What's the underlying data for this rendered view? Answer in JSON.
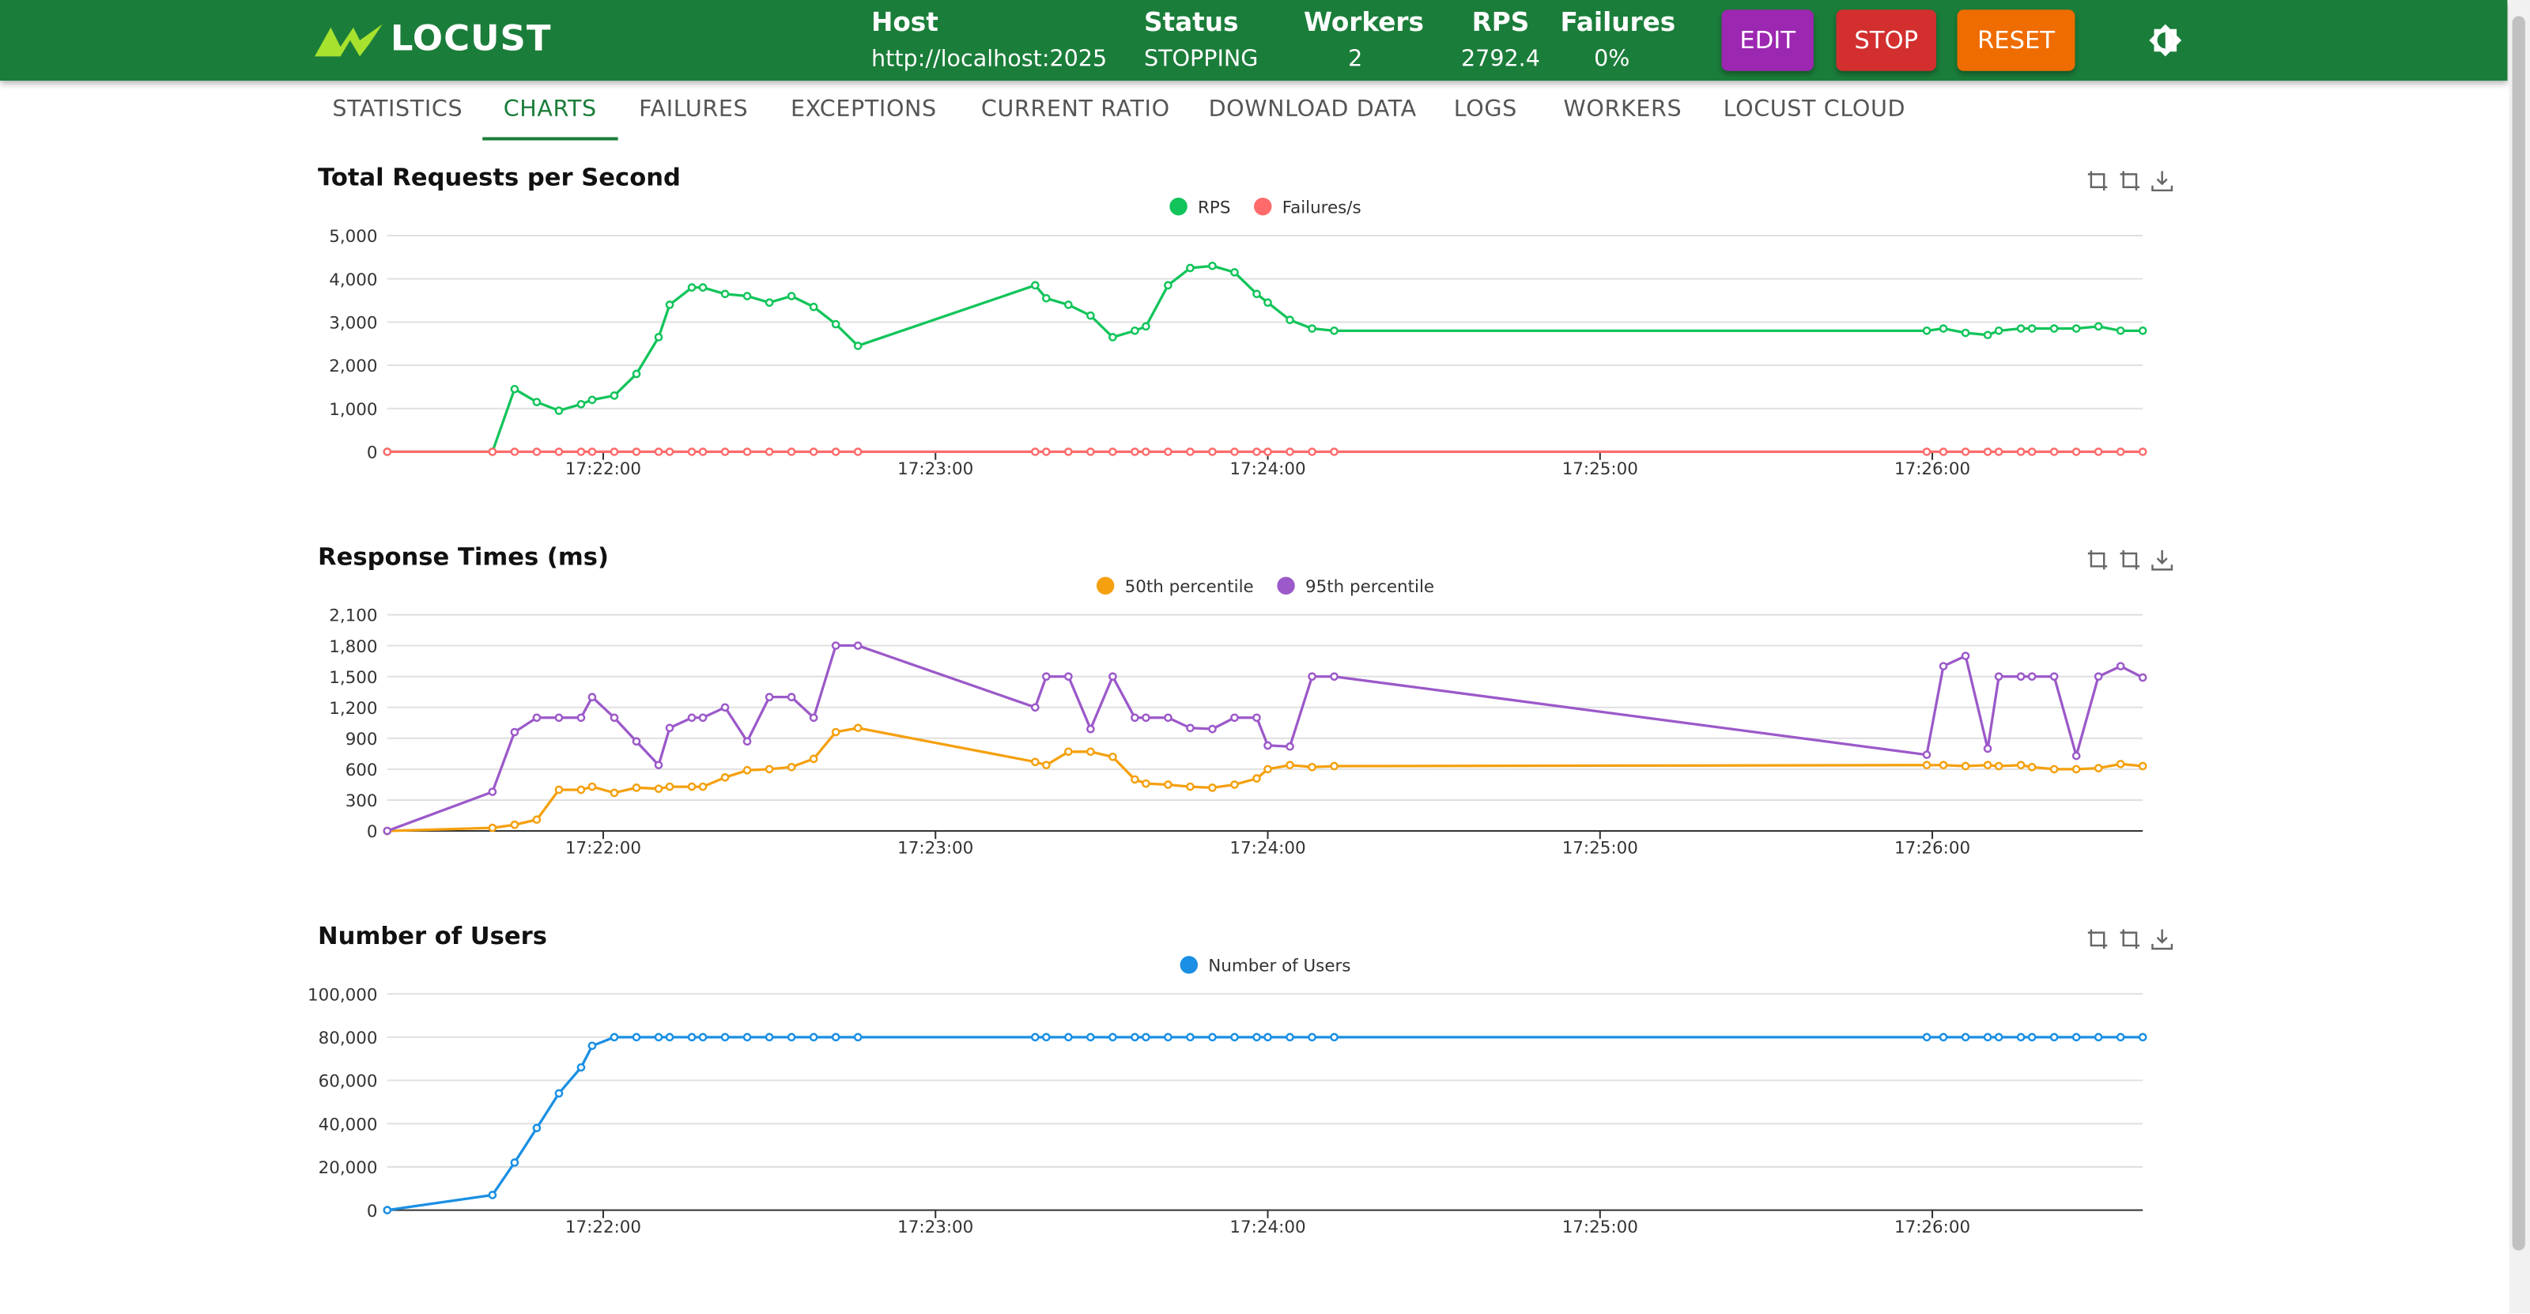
{
  "header": {
    "logo": "LOCUST",
    "stats": [
      {
        "label": "Host",
        "value": "http://localhost:2025"
      },
      {
        "label": "Status",
        "value": "STOPPING"
      },
      {
        "label": "Workers",
        "value": "2"
      },
      {
        "label": "RPS",
        "value": "2792.4"
      },
      {
        "label": "Failures",
        "value": "0%"
      }
    ],
    "buttons": [
      "EDIT",
      "STOP",
      "RESET"
    ]
  },
  "tabs": {
    "items": [
      "STATISTICS",
      "CHARTS",
      "FAILURES",
      "EXCEPTIONS",
      "CURRENT RATIO",
      "DOWNLOAD DATA",
      "LOGS",
      "WORKERS",
      "LOCUST CLOUD"
    ],
    "active": 1
  },
  "chart_data": [
    {
      "type": "line",
      "title": "Total Requests per Second",
      "x": [
        "17:21:21",
        "17:21:40",
        "17:21:44",
        "17:21:48",
        "17:21:52",
        "17:21:56",
        "17:21:58",
        "17:22:02",
        "17:22:06",
        "17:22:10",
        "17:22:12",
        "17:22:16",
        "17:22:18",
        "17:22:22",
        "17:22:26",
        "17:22:30",
        "17:22:34",
        "17:22:38",
        "17:22:42",
        "17:22:46",
        "17:23:18",
        "17:23:20",
        "17:23:24",
        "17:23:28",
        "17:23:32",
        "17:23:36",
        "17:23:38",
        "17:23:42",
        "17:23:46",
        "17:23:50",
        "17:23:54",
        "17:23:58",
        "17:24:00",
        "17:24:04",
        "17:24:08",
        "17:24:12",
        "17:25:59",
        "17:26:02",
        "17:26:06",
        "17:26:10",
        "17:26:12",
        "17:26:16",
        "17:26:18",
        "17:26:22",
        "17:26:26",
        "17:26:30",
        "17:26:34",
        "17:26:38"
      ],
      "series": [
        {
          "name": "RPS",
          "color": "#12c45a",
          "values": [
            0,
            0,
            1450,
            1150,
            950,
            1100,
            1200,
            1300,
            1800,
            2650,
            3400,
            3800,
            3800,
            3650,
            3600,
            3450,
            3600,
            3350,
            2950,
            2450,
            3850,
            3550,
            3400,
            3150,
            2650,
            2800,
            2900,
            3850,
            4250,
            4300,
            4150,
            3650,
            3450,
            3050,
            2850,
            2800,
            2800,
            2850,
            2750,
            2700,
            2800,
            2850,
            2850,
            2850,
            2850,
            2900,
            2800,
            2800
          ]
        },
        {
          "name": "Failures/s",
          "color": "#ff6b6b",
          "values": [
            0,
            0,
            0,
            0,
            0,
            0,
            0,
            0,
            0,
            0,
            0,
            0,
            0,
            0,
            0,
            0,
            0,
            0,
            0,
            0,
            0,
            0,
            0,
            0,
            0,
            0,
            0,
            0,
            0,
            0,
            0,
            0,
            0,
            0,
            0,
            0,
            0,
            0,
            0,
            0,
            0,
            0,
            0,
            0,
            0,
            0,
            0,
            0
          ]
        }
      ],
      "xlim": [
        "17:21:21",
        "17:26:38"
      ],
      "xticks": [
        "17:22:00",
        "17:23:00",
        "17:24:00",
        "17:25:00",
        "17:26:00"
      ],
      "ylim": [
        0,
        5000
      ],
      "yticks": [
        0,
        {
          "value": 1000,
          "label": "1,000"
        },
        {
          "value": 2000,
          "label": "2,000"
        },
        {
          "value": 3000,
          "label": "3,000"
        },
        {
          "value": 4000,
          "label": "4,000"
        },
        {
          "value": 5000,
          "label": "5,000"
        }
      ],
      "grid": true
    },
    {
      "type": "line",
      "title": "Response Times (ms)",
      "x": [
        "17:21:21",
        "17:21:40",
        "17:21:44",
        "17:21:48",
        "17:21:52",
        "17:21:56",
        "17:21:58",
        "17:22:02",
        "17:22:06",
        "17:22:10",
        "17:22:12",
        "17:22:16",
        "17:22:18",
        "17:22:22",
        "17:22:26",
        "17:22:30",
        "17:22:34",
        "17:22:38",
        "17:22:42",
        "17:22:46",
        "17:23:18",
        "17:23:20",
        "17:23:24",
        "17:23:28",
        "17:23:32",
        "17:23:36",
        "17:23:38",
        "17:23:42",
        "17:23:46",
        "17:23:50",
        "17:23:54",
        "17:23:58",
        "17:24:00",
        "17:24:04",
        "17:24:08",
        "17:24:12",
        "17:25:59",
        "17:26:02",
        "17:26:06",
        "17:26:10",
        "17:26:12",
        "17:26:16",
        "17:26:18",
        "17:26:22",
        "17:26:26",
        "17:26:30",
        "17:26:34",
        "17:26:38"
      ],
      "series": [
        {
          "name": "50th percentile",
          "color": "#f5a00f",
          "values": [
            0,
            30,
            60,
            110,
            400,
            400,
            430,
            370,
            420,
            410,
            430,
            430,
            430,
            520,
            590,
            600,
            620,
            700,
            960,
            1000,
            670,
            640,
            770,
            770,
            720,
            500,
            460,
            450,
            430,
            420,
            450,
            510,
            600,
            640,
            620,
            630,
            640,
            640,
            630,
            640,
            630,
            640,
            620,
            600,
            600,
            610,
            650,
            630
          ]
        },
        {
          "name": "95th percentile",
          "color": "#9b59c9",
          "values": [
            0,
            380,
            960,
            1100,
            1100,
            1100,
            1300,
            1100,
            870,
            640,
            1000,
            1100,
            1100,
            1200,
            870,
            1300,
            1300,
            1100,
            1800,
            1800,
            1200,
            1500,
            1500,
            990,
            1500,
            1100,
            1100,
            1100,
            1000,
            990,
            1100,
            1100,
            830,
            820,
            1500,
            1500,
            740,
            1600,
            1700,
            800,
            1500,
            1500,
            1500,
            1500,
            730,
            1500,
            1600,
            1490
          ]
        }
      ],
      "xlim": [
        "17:21:21",
        "17:26:38"
      ],
      "xticks": [
        "17:22:00",
        "17:23:00",
        "17:24:00",
        "17:25:00",
        "17:26:00"
      ],
      "ylim": [
        0,
        2100
      ],
      "yticks": [
        0,
        300,
        600,
        900,
        {
          "value": 1200,
          "label": "1,200"
        },
        {
          "value": 1500,
          "label": "1,500"
        },
        {
          "value": 1800,
          "label": "1,800"
        },
        {
          "value": 2100,
          "label": "2,100"
        }
      ],
      "grid": true
    },
    {
      "type": "line",
      "title": "Number of Users",
      "x": [
        "17:21:21",
        "17:21:40",
        "17:21:44",
        "17:21:48",
        "17:21:52",
        "17:21:56",
        "17:21:58",
        "17:22:02",
        "17:22:06",
        "17:22:10",
        "17:22:12",
        "17:22:16",
        "17:22:18",
        "17:22:22",
        "17:22:26",
        "17:22:30",
        "17:22:34",
        "17:22:38",
        "17:22:42",
        "17:22:46",
        "17:23:18",
        "17:23:20",
        "17:23:24",
        "17:23:28",
        "17:23:32",
        "17:23:36",
        "17:23:38",
        "17:23:42",
        "17:23:46",
        "17:23:50",
        "17:23:54",
        "17:23:58",
        "17:24:00",
        "17:24:04",
        "17:24:08",
        "17:24:12",
        "17:25:59",
        "17:26:02",
        "17:26:06",
        "17:26:10",
        "17:26:12",
        "17:26:16",
        "17:26:18",
        "17:26:22",
        "17:26:26",
        "17:26:30",
        "17:26:34",
        "17:26:38"
      ],
      "series": [
        {
          "name": "Number of Users",
          "color": "#1a8fe3",
          "values": [
            0,
            7000,
            22000,
            38000,
            54000,
            66000,
            76000,
            80000,
            80000,
            80000,
            80000,
            80000,
            80000,
            80000,
            80000,
            80000,
            80000,
            80000,
            80000,
            80000,
            80000,
            80000,
            80000,
            80000,
            80000,
            80000,
            80000,
            80000,
            80000,
            80000,
            80000,
            80000,
            80000,
            80000,
            80000,
            80000,
            80000,
            80000,
            80000,
            80000,
            80000,
            80000,
            80000,
            80000,
            80000,
            80000,
            80000,
            80000
          ]
        }
      ],
      "xlim": [
        "17:21:21",
        "17:26:38"
      ],
      "xticks": [
        "17:22:00",
        "17:23:00",
        "17:24:00",
        "17:25:00",
        "17:26:00"
      ],
      "ylim": [
        0,
        100000
      ],
      "yticks": [
        0,
        {
          "value": 20000,
          "label": "20,000"
        },
        {
          "value": 40000,
          "label": "40,000"
        },
        {
          "value": 60000,
          "label": "60,000"
        },
        {
          "value": 80000,
          "label": "80,000"
        },
        {
          "value": 100000,
          "label": "100,000"
        }
      ],
      "grid": true
    }
  ]
}
